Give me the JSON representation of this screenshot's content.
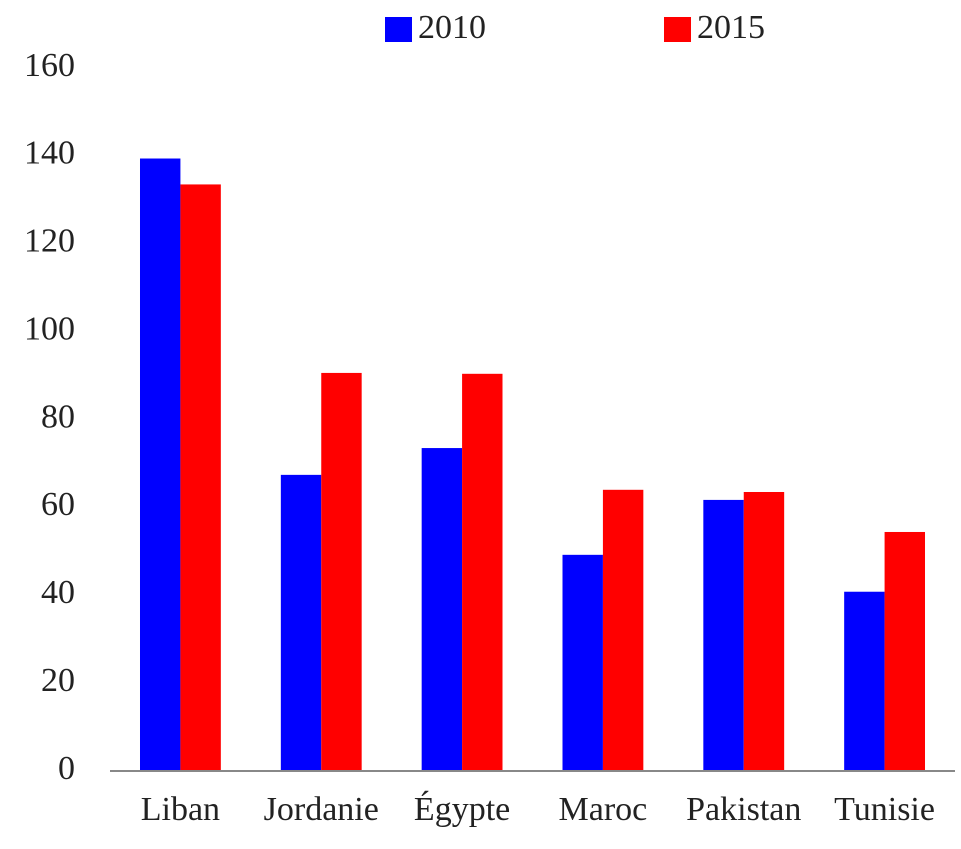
{
  "chart_data": {
    "type": "bar",
    "categories": [
      "Liban",
      "Jordanie",
      "Égypte",
      "Maroc",
      "Pakistan",
      "Tunisie"
    ],
    "series": [
      {
        "name": "2010",
        "color": "#0000ff",
        "values": [
          139.4,
          67.4,
          73.5,
          49.2,
          61.7,
          40.8
        ]
      },
      {
        "name": "2015",
        "color": "#ff0000",
        "values": [
          133.5,
          90.6,
          90.4,
          64,
          63.5,
          54.4
        ]
      }
    ],
    "ylim": [
      0,
      160
    ],
    "yticks": [
      0,
      20,
      40,
      60,
      80,
      100,
      120,
      140,
      160
    ],
    "grid": false,
    "legend": "top"
  }
}
